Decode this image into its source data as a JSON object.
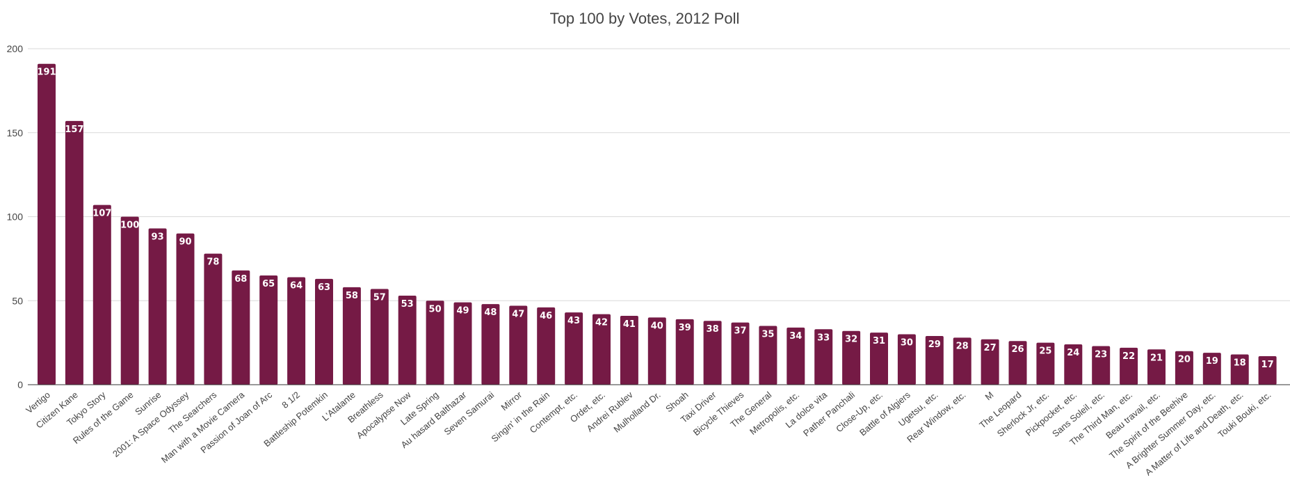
{
  "chart_data": {
    "type": "bar",
    "title": "Top 100 by Votes, 2012 Poll",
    "xlabel": "",
    "ylabel": "",
    "ylim": [
      0,
      200
    ],
    "yticks": [
      "0",
      "50",
      "100",
      "150",
      "200"
    ],
    "grid": true,
    "bar_color": "#751a45",
    "categories": [
      "Vertigo",
      "Citizen Kane",
      "Tokyo Story",
      "Rules of the Game",
      "Sunrise",
      "2001: A Space Odyssey",
      "The Searchers",
      "Man with a Movie Camera",
      "Passion of Joan of Arc",
      "8 1/2",
      "Battleship Potemkin",
      "L'Atalante",
      "Breathless",
      "Apocalypse Now",
      "Late Spring",
      "Au hasard Balthazar",
      "Seven Samurai",
      "Mirror",
      "Singin' in the Rain",
      "Contempt, etc.",
      "Ordet, etc.",
      "Andrei Rublev",
      "Mulholland Dr.",
      "Shoah",
      "Taxi Driver",
      "Bicycle Thieves",
      "The General",
      "Metropolis, etc.",
      "La dolce vita",
      "Pather Panchali",
      "Close-Up, etc.",
      "Battle of Algiers",
      "Ugetsu, etc.",
      "Rear Window, etc.",
      "M",
      "The Leopard",
      "Sherlock Jr, etc.",
      "Pickpocket, etc.",
      "Sans Soleil, etc.",
      "The Third Man, etc.",
      "Beau travail, etc.",
      "The Spirit of the Beehive",
      "A Brighter Summer Day, etc.",
      "A Matter of Life and Death, etc.",
      "Touki Bouki, etc."
    ],
    "values": [
      191,
      157,
      107,
      100,
      93,
      90,
      78,
      68,
      65,
      64,
      63,
      58,
      57,
      53,
      50,
      49,
      48,
      47,
      46,
      43,
      42,
      41,
      40,
      39,
      38,
      37,
      35,
      34,
      33,
      32,
      31,
      30,
      29,
      28,
      27,
      26,
      25,
      24,
      23,
      22,
      21,
      20,
      19,
      18,
      17
    ]
  }
}
